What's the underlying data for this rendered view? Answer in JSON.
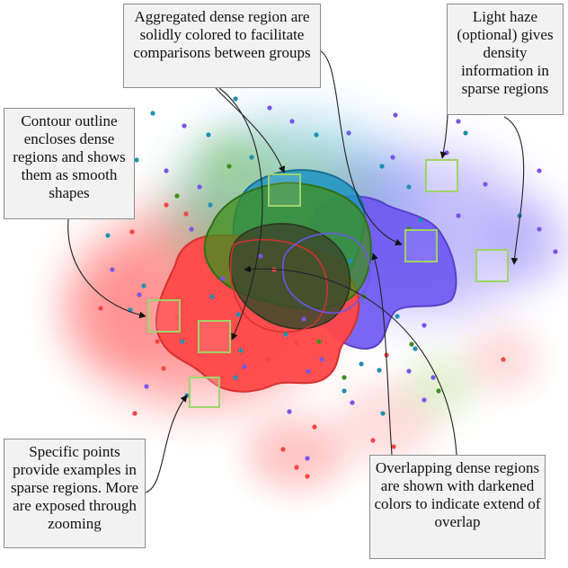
{
  "callouts": {
    "aggregated": "Aggregated dense region are solidly colored to facilitate comparisons between groups",
    "haze": "Light haze (optional) gives density information in sparse regions",
    "contour": "Contour outline encloses dense regions and shows them as smooth shapes",
    "points": "Specific points provide examples in sparse regions. More are exposed through zooming",
    "overlap": "Overlapping dense regions are shown with darkened colors to indicate extend of overlap"
  },
  "colors": {
    "red": "#ff4a4a",
    "blue": "#2f9bc4",
    "green": "#4a9a1e",
    "purple": "#7056f0",
    "overlap": "#3c4a2e",
    "highlight": "#9fd36a"
  },
  "points": [
    [
      170,
      126,
      "blue"
    ],
    [
      205,
      140,
      "purple"
    ],
    [
      232,
      150,
      "blue"
    ],
    [
      262,
      110,
      "blue"
    ],
    [
      300,
      120,
      "purple"
    ],
    [
      325,
      135,
      "purple"
    ],
    [
      352,
      150,
      "blue"
    ],
    [
      388,
      148,
      "purple"
    ],
    [
      425,
      185,
      "blue"
    ],
    [
      440,
      128,
      "purple"
    ],
    [
      510,
      135,
      "purple"
    ],
    [
      518,
      148,
      "blue"
    ],
    [
      497,
      170,
      "purple"
    ],
    [
      455,
      208,
      "blue"
    ],
    [
      437,
      175,
      "purple"
    ],
    [
      152,
      178,
      "blue"
    ],
    [
      185,
      190,
      "purple"
    ],
    [
      222,
      208,
      "purple"
    ],
    [
      197,
      218,
      "green"
    ],
    [
      234,
      228,
      "blue"
    ],
    [
      600,
      190,
      "purple"
    ],
    [
      540,
      205,
      "purple"
    ],
    [
      578,
      240,
      "blue"
    ],
    [
      600,
      255,
      "purple"
    ],
    [
      618,
      280,
      "purple"
    ],
    [
      510,
      240,
      "purple"
    ],
    [
      120,
      262,
      "blue"
    ],
    [
      185,
      228,
      "red"
    ],
    [
      207,
      238,
      "red"
    ],
    [
      213,
      255,
      "purple"
    ],
    [
      147,
      258,
      "red"
    ],
    [
      125,
      300,
      "purple"
    ],
    [
      160,
      318,
      "blue"
    ],
    [
      155,
      328,
      "purple"
    ],
    [
      145,
      345,
      "blue"
    ],
    [
      112,
      343,
      "red"
    ],
    [
      197,
      353,
      "red"
    ],
    [
      203,
      380,
      "blue"
    ],
    [
      175,
      380,
      "red"
    ],
    [
      182,
      410,
      "red"
    ],
    [
      163,
      430,
      "purple"
    ],
    [
      208,
      440,
      "blue"
    ],
    [
      150,
      460,
      "red"
    ],
    [
      265,
      350,
      "blue"
    ],
    [
      268,
      390,
      "blue"
    ],
    [
      272,
      408,
      "purple"
    ],
    [
      262,
      420,
      "blue"
    ],
    [
      298,
      400,
      "red"
    ],
    [
      318,
      372,
      "blue"
    ],
    [
      330,
      382,
      "red"
    ],
    [
      338,
      355,
      "purple"
    ],
    [
      355,
      380,
      "green"
    ],
    [
      358,
      400,
      "purple"
    ],
    [
      343,
      413,
      "purple"
    ],
    [
      402,
      405,
      "blue"
    ],
    [
      383,
      420,
      "green"
    ],
    [
      383,
      435,
      "blue"
    ],
    [
      392,
      448,
      "purple"
    ],
    [
      422,
      412,
      "blue"
    ],
    [
      455,
      413,
      "purple"
    ],
    [
      462,
      388,
      "blue"
    ],
    [
      458,
      383,
      "green"
    ],
    [
      482,
      420,
      "purple"
    ],
    [
      488,
      435,
      "green"
    ],
    [
      472,
      445,
      "purple"
    ],
    [
      442,
      352,
      "blue"
    ],
    [
      472,
      362,
      "purple"
    ],
    [
      430,
      395,
      "red"
    ],
    [
      315,
      500,
      "red"
    ],
    [
      330,
      520,
      "red"
    ],
    [
      342,
      510,
      "purple"
    ],
    [
      342,
      530,
      "red"
    ],
    [
      322,
      458,
      "purple"
    ],
    [
      350,
      475,
      "red"
    ],
    [
      415,
      490,
      "red"
    ],
    [
      438,
      497,
      "red"
    ],
    [
      426,
      460,
      "blue"
    ],
    [
      455,
      255,
      "green"
    ],
    [
      468,
      245,
      "blue"
    ],
    [
      560,
      400,
      "red"
    ],
    [
      248,
      310,
      "purple"
    ],
    [
      236,
      330,
      "blue"
    ],
    [
      305,
      300,
      "red"
    ],
    [
      290,
      285,
      "purple"
    ],
    [
      390,
      290,
      "blue"
    ],
    [
      405,
      330,
      "green"
    ],
    [
      255,
      185,
      "green"
    ],
    [
      280,
      175,
      "blue"
    ],
    [
      470,
      290,
      "purple"
    ],
    [
      442,
      270,
      "purple"
    ]
  ]
}
